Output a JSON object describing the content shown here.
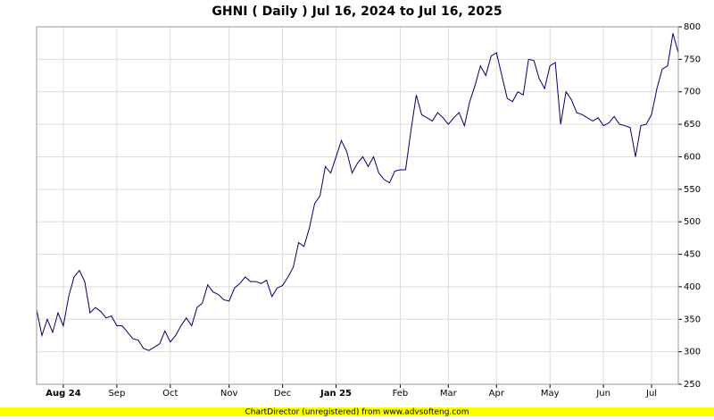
{
  "chart_data": {
    "type": "line",
    "title": "GHNI ( Daily ) Jul 16, 2024 to Jul 16, 2025",
    "footer": "ChartDirector (unregistered) from www.advsofteng.com",
    "categories": [
      null,
      null,
      null,
      null,
      null,
      "Aug 24",
      null,
      null,
      null,
      null,
      null,
      null,
      null,
      null,
      null,
      "Sep",
      null,
      null,
      null,
      null,
      null,
      null,
      null,
      null,
      null,
      "Oct",
      null,
      null,
      null,
      null,
      null,
      null,
      null,
      null,
      null,
      null,
      "Nov",
      null,
      null,
      null,
      null,
      null,
      null,
      null,
      null,
      null,
      "Dec",
      null,
      null,
      null,
      null,
      null,
      null,
      null,
      null,
      null,
      "Jan 25",
      null,
      null,
      null,
      null,
      null,
      null,
      null,
      null,
      null,
      null,
      null,
      "Feb",
      null,
      null,
      null,
      null,
      null,
      null,
      null,
      null,
      "Mar",
      null,
      null,
      null,
      null,
      null,
      null,
      null,
      null,
      "Apr",
      null,
      null,
      null,
      null,
      null,
      null,
      null,
      null,
      null,
      "May",
      null,
      null,
      null,
      null,
      null,
      null,
      null,
      null,
      null,
      "Jun",
      null,
      null,
      null,
      null,
      null,
      null,
      null,
      null,
      "Jul",
      null,
      null,
      null,
      null,
      null
    ],
    "series": [
      {
        "name": "GHNI",
        "color": "#000066",
        "values": [
          365,
          325,
          350,
          330,
          360,
          340,
          385,
          415,
          425,
          408,
          360,
          368,
          362,
          352,
          355,
          340,
          340,
          330,
          320,
          318,
          305,
          302,
          307,
          312,
          332,
          315,
          325,
          340,
          352,
          340,
          368,
          375,
          403,
          392,
          388,
          380,
          378,
          398,
          405,
          415,
          408,
          408,
          405,
          410,
          385,
          398,
          402,
          415,
          430,
          468,
          462,
          490,
          528,
          540,
          585,
          575,
          600,
          625,
          608,
          575,
          590,
          600,
          585,
          600,
          575,
          565,
          560,
          578,
          580,
          580,
          640,
          695,
          665,
          660,
          655,
          668,
          660,
          650,
          660,
          668,
          648,
          685,
          710,
          740,
          725,
          755,
          760,
          725,
          690,
          685,
          700,
          695,
          750,
          748,
          720,
          705,
          740,
          745,
          650,
          700,
          688,
          668,
          665,
          660,
          655,
          660,
          648,
          652,
          662,
          650,
          648,
          645,
          600,
          648,
          650,
          665,
          705,
          735,
          740,
          790,
          760
        ]
      }
    ],
    "ylim": [
      250,
      800
    ],
    "yticks": [
      250,
      300,
      350,
      400,
      450,
      500,
      550,
      600,
      650,
      700,
      750,
      800
    ],
    "grid": true
  }
}
